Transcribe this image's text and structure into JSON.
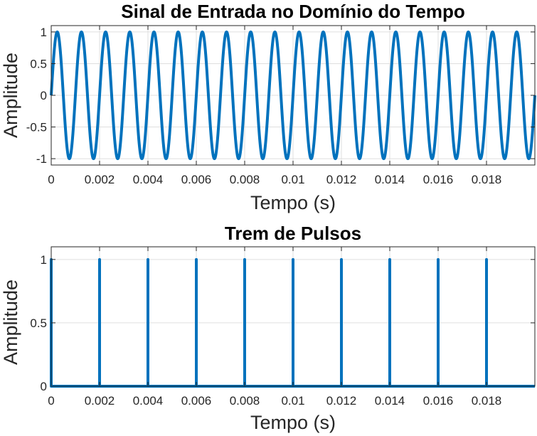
{
  "chart_data": [
    {
      "type": "line",
      "title": "Sinal de Entrada no Domínio do Tempo",
      "xlabel": "Tempo (s)",
      "ylabel": "Amplitude",
      "xlim": [
        0,
        0.02
      ],
      "ylim": [
        -1.1,
        1.1
      ],
      "grid": true,
      "x_ticks": [
        "0",
        "0.002",
        "0.004",
        "0.006",
        "0.008",
        "0.01",
        "0.012",
        "0.014",
        "0.016",
        "0.018"
      ],
      "y_ticks": [
        "-1",
        "-0.5",
        "0",
        "0.5",
        "1"
      ],
      "series": [
        {
          "function": "sine",
          "amplitude": 1,
          "frequency_hz": 1000,
          "x_start": 0,
          "x_end": 0.02,
          "color": "#0072bd"
        }
      ]
    },
    {
      "type": "line",
      "title": "Trem de Pulsos",
      "xlabel": "Tempo (s)",
      "ylabel": "Amplitude",
      "xlim": [
        0,
        0.02
      ],
      "ylim": [
        0,
        1.1
      ],
      "grid": true,
      "x_ticks": [
        "0",
        "0.002",
        "0.004",
        "0.006",
        "0.008",
        "0.01",
        "0.012",
        "0.014",
        "0.016",
        "0.018"
      ],
      "y_ticks": [
        "0",
        "0.5",
        "1"
      ],
      "series": [
        {
          "function": "pulse_train",
          "amplitude": 1,
          "pulse_times": [
            0,
            0.002,
            0.004,
            0.006,
            0.008,
            0.01,
            0.012,
            0.014,
            0.016,
            0.018
          ],
          "baseline": 0,
          "color": "#0072bd"
        }
      ]
    }
  ]
}
